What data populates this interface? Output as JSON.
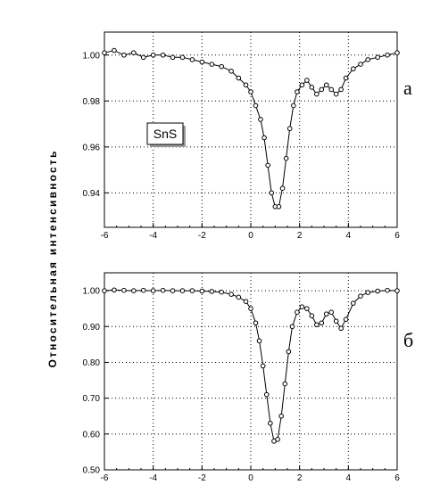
{
  "y_label": "Относительная интенсивность",
  "chart_data": [
    {
      "type": "scatter",
      "panel_letter": "а",
      "annotation": "SnS",
      "xlim": [
        -6,
        6
      ],
      "ylim": [
        0.925,
        1.01
      ],
      "x_ticks": [
        -6,
        -4,
        -2,
        0,
        2,
        4,
        6
      ],
      "y_ticks": [
        0.94,
        0.96,
        0.98,
        1.0
      ],
      "y_tick_labels": [
        "0.94",
        "0.96",
        "0.98",
        "1.00"
      ],
      "grid": true,
      "points": [
        [
          -6.0,
          1.001
        ],
        [
          -5.6,
          1.002
        ],
        [
          -5.2,
          1.0
        ],
        [
          -4.8,
          1.001
        ],
        [
          -4.4,
          0.999
        ],
        [
          -4.0,
          1.0
        ],
        [
          -3.6,
          1.0
        ],
        [
          -3.2,
          0.999
        ],
        [
          -2.8,
          0.999
        ],
        [
          -2.4,
          0.998
        ],
        [
          -2.0,
          0.997
        ],
        [
          -1.6,
          0.996
        ],
        [
          -1.2,
          0.995
        ],
        [
          -0.8,
          0.993
        ],
        [
          -0.5,
          0.99
        ],
        [
          -0.2,
          0.987
        ],
        [
          0.0,
          0.984
        ],
        [
          0.2,
          0.978
        ],
        [
          0.4,
          0.972
        ],
        [
          0.55,
          0.964
        ],
        [
          0.7,
          0.952
        ],
        [
          0.85,
          0.94
        ],
        [
          1.0,
          0.934
        ],
        [
          1.15,
          0.934
        ],
        [
          1.3,
          0.942
        ],
        [
          1.45,
          0.955
        ],
        [
          1.6,
          0.968
        ],
        [
          1.75,
          0.978
        ],
        [
          1.9,
          0.984
        ],
        [
          2.1,
          0.987
        ],
        [
          2.3,
          0.989
        ],
        [
          2.5,
          0.986
        ],
        [
          2.7,
          0.983
        ],
        [
          2.9,
          0.985
        ],
        [
          3.1,
          0.987
        ],
        [
          3.3,
          0.985
        ],
        [
          3.5,
          0.983
        ],
        [
          3.7,
          0.985
        ],
        [
          3.9,
          0.99
        ],
        [
          4.2,
          0.994
        ],
        [
          4.5,
          0.996
        ],
        [
          4.8,
          0.998
        ],
        [
          5.2,
          0.999
        ],
        [
          5.6,
          1.0
        ],
        [
          6.0,
          1.001
        ]
      ]
    },
    {
      "type": "scatter",
      "panel_letter": "б",
      "xlim": [
        -6,
        6
      ],
      "ylim": [
        0.5,
        1.05
      ],
      "x_ticks": [
        -6,
        -4,
        -2,
        0,
        2,
        4,
        6
      ],
      "y_ticks": [
        0.5,
        0.6,
        0.7,
        0.8,
        0.9,
        1.0
      ],
      "y_tick_labels": [
        "0.50",
        "0.60",
        "0.70",
        "0.80",
        "0.90",
        "1.00"
      ],
      "grid": true,
      "points": [
        [
          -6.0,
          1.0
        ],
        [
          -5.6,
          1.002
        ],
        [
          -5.2,
          1.001
        ],
        [
          -4.8,
          1.0
        ],
        [
          -4.4,
          1.001
        ],
        [
          -4.0,
          1.0
        ],
        [
          -3.6,
          1.001
        ],
        [
          -3.2,
          1.0
        ],
        [
          -2.8,
          1.0
        ],
        [
          -2.4,
          1.0
        ],
        [
          -2.0,
          0.999
        ],
        [
          -1.6,
          0.998
        ],
        [
          -1.2,
          0.996
        ],
        [
          -0.8,
          0.99
        ],
        [
          -0.5,
          0.982
        ],
        [
          -0.2,
          0.97
        ],
        [
          0.0,
          0.95
        ],
        [
          0.2,
          0.91
        ],
        [
          0.35,
          0.86
        ],
        [
          0.5,
          0.79
        ],
        [
          0.65,
          0.71
        ],
        [
          0.8,
          0.63
        ],
        [
          0.95,
          0.58
        ],
        [
          1.1,
          0.585
        ],
        [
          1.25,
          0.65
        ],
        [
          1.4,
          0.74
        ],
        [
          1.55,
          0.83
        ],
        [
          1.7,
          0.9
        ],
        [
          1.9,
          0.94
        ],
        [
          2.1,
          0.955
        ],
        [
          2.3,
          0.95
        ],
        [
          2.5,
          0.93
        ],
        [
          2.7,
          0.905
        ],
        [
          2.9,
          0.91
        ],
        [
          3.1,
          0.935
        ],
        [
          3.3,
          0.94
        ],
        [
          3.5,
          0.915
        ],
        [
          3.7,
          0.895
        ],
        [
          3.9,
          0.92
        ],
        [
          4.2,
          0.965
        ],
        [
          4.5,
          0.985
        ],
        [
          4.8,
          0.995
        ],
        [
          5.2,
          0.999
        ],
        [
          5.6,
          1.001
        ],
        [
          6.0,
          1.0
        ]
      ]
    }
  ]
}
